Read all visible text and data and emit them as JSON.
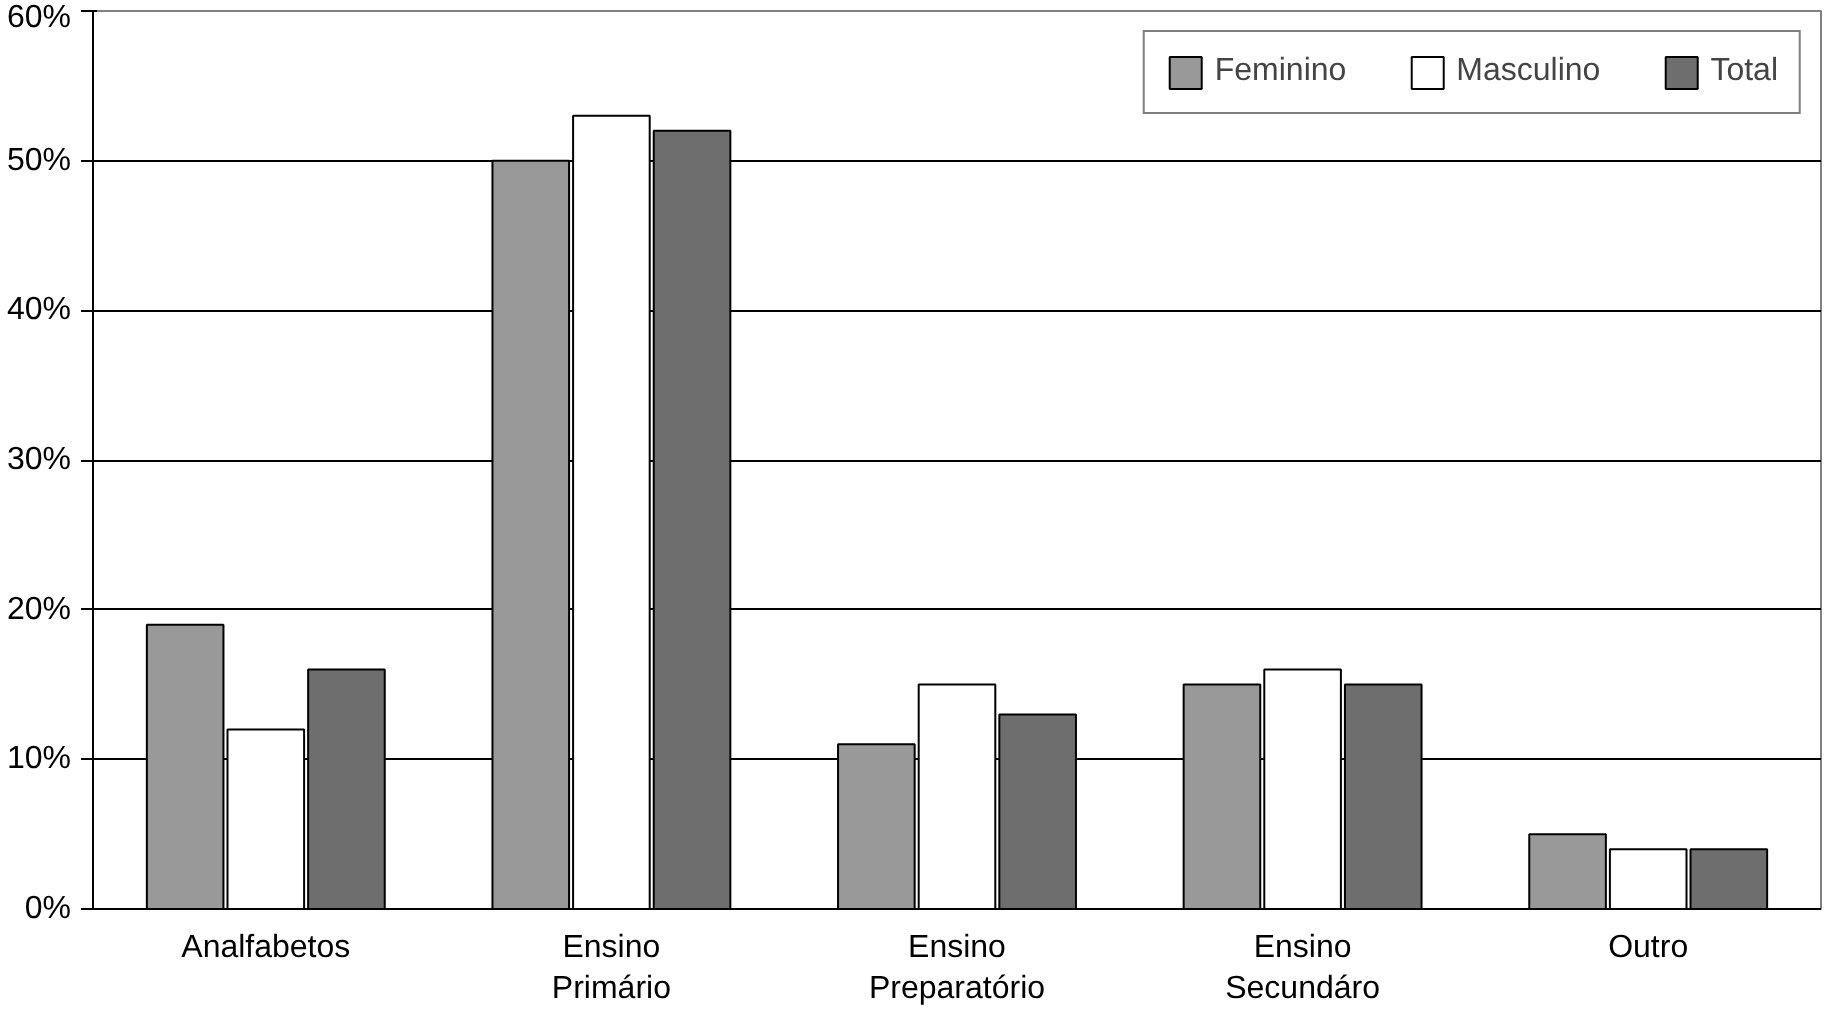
{
  "chart_data": {
    "type": "bar",
    "categories": [
      "Analfabetos",
      "Ensino Primário",
      "Ensino Preparatório",
      "Ensino Secundáro",
      "Outro"
    ],
    "series": [
      {
        "name": "Feminino",
        "color": "#999999",
        "values": [
          19,
          50,
          11,
          15,
          5
        ]
      },
      {
        "name": "Masculino",
        "color": "#ffffff",
        "values": [
          12,
          53,
          15,
          16,
          4
        ]
      },
      {
        "name": "Total",
        "color": "#6e6e6e",
        "values": [
          16,
          52,
          13,
          15,
          4
        ]
      }
    ],
    "ylim": [
      0,
      60
    ],
    "yticks": [
      {
        "value": 0,
        "label": "0%"
      },
      {
        "value": 10,
        "label": "10%"
      },
      {
        "value": 20,
        "label": "20%"
      },
      {
        "value": 30,
        "label": "30%"
      },
      {
        "value": 40,
        "label": "40%"
      },
      {
        "value": 50,
        "label": "50%"
      },
      {
        "value": 60,
        "label": "60%"
      }
    ],
    "grid": "y",
    "legend": "top right"
  }
}
